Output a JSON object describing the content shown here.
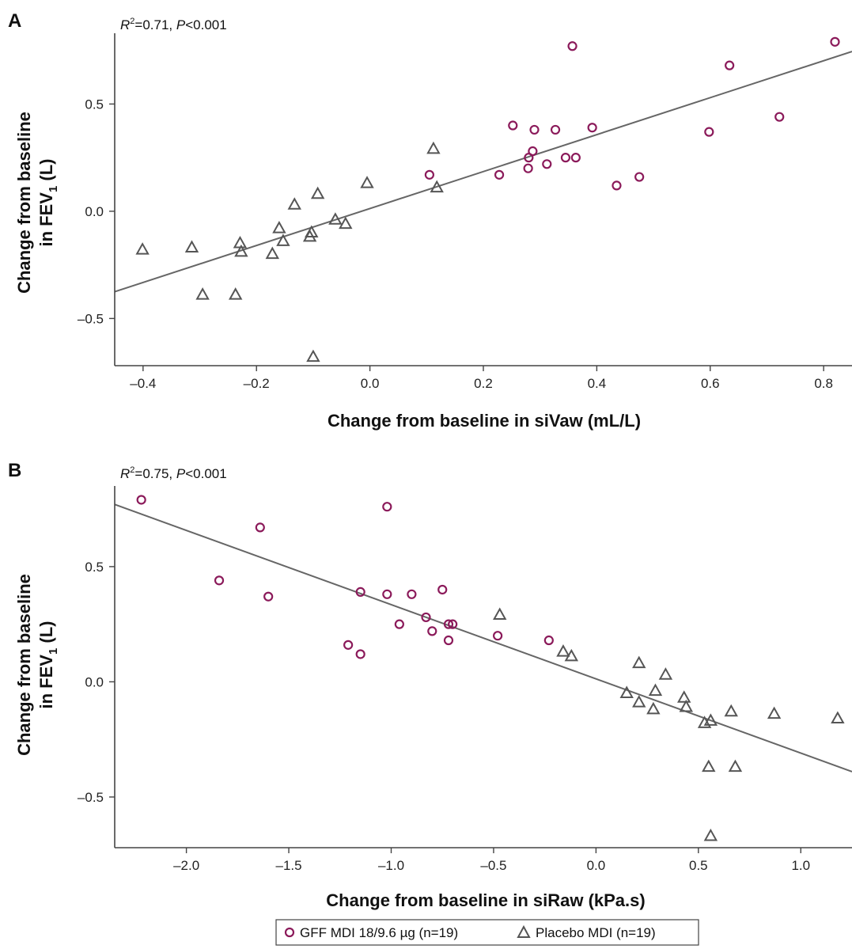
{
  "colors": {
    "gff": "#8B1A5A",
    "placebo": "#555555",
    "fit_line": "#666666",
    "axis": "#444444"
  },
  "legend": {
    "gff_label": "GFF MDI 18/9.6 µg (n=19)",
    "placebo_label": "Placebo MDI (n=19)",
    "gff_marker": "circle",
    "placebo_marker": "triangle"
  },
  "chart_data": [
    {
      "panel": "A",
      "type": "scatter",
      "stat": {
        "r2_symbol": "R",
        "r2_value": "=0.71, ",
        "p_symbol": "P",
        "p_value": "<0.001"
      },
      "xlabel": "Change from baseline in siVaw (mL/L)",
      "ylabel_line1": "Change from baseline",
      "ylabel_line2_pre": "in FEV",
      "ylabel_line2_sub": "1",
      "ylabel_line2_post": " (L)",
      "xlim": [
        -0.45,
        0.85
      ],
      "ylim": [
        -0.72,
        0.83
      ],
      "xticks": [
        -0.4,
        -0.2,
        0.0,
        0.2,
        0.4,
        0.6,
        0.8
      ],
      "xtick_labels": [
        "–0.4",
        "–0.2",
        "0.0",
        "0.2",
        "0.4",
        "0.6",
        "0.8"
      ],
      "yticks": [
        -0.5,
        0.0,
        0.5
      ],
      "ytick_labels": [
        "–0.5",
        "0.0",
        "0.5"
      ],
      "fit_line": {
        "x": [
          -0.45,
          0.85
        ],
        "y": [
          -0.375,
          0.745
        ]
      },
      "series": [
        {
          "name": "GFF MDI 18/9.6 µg (n=19)",
          "marker": "circle",
          "points": [
            [
              0.357,
              0.77
            ],
            [
              0.82,
              0.79
            ],
            [
              0.634,
              0.68
            ],
            [
              0.252,
              0.4
            ],
            [
              0.29,
              0.38
            ],
            [
              0.327,
              0.38
            ],
            [
              0.392,
              0.39
            ],
            [
              0.598,
              0.37
            ],
            [
              0.722,
              0.44
            ],
            [
              0.287,
              0.28
            ],
            [
              0.28,
              0.25
            ],
            [
              0.345,
              0.25
            ],
            [
              0.363,
              0.25
            ],
            [
              0.312,
              0.22
            ],
            [
              0.279,
              0.2
            ],
            [
              0.105,
              0.17
            ],
            [
              0.228,
              0.17
            ],
            [
              0.475,
              0.16
            ],
            [
              0.435,
              0.12
            ]
          ]
        },
        {
          "name": "Placebo MDI (n=19)",
          "marker": "triangle",
          "points": [
            [
              0.112,
              0.29
            ],
            [
              -0.005,
              0.13
            ],
            [
              0.118,
              0.11
            ],
            [
              -0.092,
              0.08
            ],
            [
              -0.133,
              0.03
            ],
            [
              -0.061,
              -0.04
            ],
            [
              -0.043,
              -0.06
            ],
            [
              -0.16,
              -0.08
            ],
            [
              -0.103,
              -0.1
            ],
            [
              -0.106,
              -0.12
            ],
            [
              -0.153,
              -0.14
            ],
            [
              -0.229,
              -0.15
            ],
            [
              -0.314,
              -0.17
            ],
            [
              -0.401,
              -0.18
            ],
            [
              -0.227,
              -0.19
            ],
            [
              -0.172,
              -0.2
            ],
            [
              -0.295,
              -0.39
            ],
            [
              -0.237,
              -0.39
            ],
            [
              -0.1,
              -0.68
            ]
          ]
        }
      ]
    },
    {
      "panel": "B",
      "type": "scatter",
      "stat": {
        "r2_symbol": "R",
        "r2_value": "=0.75, ",
        "p_symbol": "P",
        "p_value": "<0.001"
      },
      "xlabel": "Change from baseline in siRaw (kPa.s)",
      "ylabel_line1": "Change from baseline",
      "ylabel_line2_pre": "in FEV",
      "ylabel_line2_sub": "1",
      "ylabel_line2_post": " (L)",
      "xlim": [
        -2.35,
        1.25
      ],
      "ylim": [
        -0.72,
        0.85
      ],
      "xticks": [
        -2.0,
        -1.5,
        -1.0,
        -0.5,
        0.0,
        0.5,
        1.0
      ],
      "xtick_labels": [
        "–2.0",
        "–1.5",
        "–1.0",
        "–0.5",
        "0.0",
        "0.5",
        "1.0"
      ],
      "yticks": [
        -0.5,
        0.0,
        0.5
      ],
      "ytick_labels": [
        "–0.5",
        "0.0",
        "0.5"
      ],
      "fit_line": {
        "x": [
          -2.35,
          1.25
        ],
        "y": [
          0.77,
          -0.39
        ]
      },
      "series": [
        {
          "name": "GFF MDI 18/9.6 µg (n=19)",
          "marker": "circle",
          "points": [
            [
              -2.22,
              0.79
            ],
            [
              -1.64,
              0.67
            ],
            [
              -1.02,
              0.76
            ],
            [
              -1.84,
              0.44
            ],
            [
              -1.6,
              0.37
            ],
            [
              -1.15,
              0.39
            ],
            [
              -1.02,
              0.38
            ],
            [
              -0.9,
              0.38
            ],
            [
              -0.75,
              0.4
            ],
            [
              -0.83,
              0.28
            ],
            [
              -0.96,
              0.25
            ],
            [
              -0.72,
              0.25
            ],
            [
              -0.7,
              0.25
            ],
            [
              -0.8,
              0.22
            ],
            [
              -0.48,
              0.2
            ],
            [
              -0.72,
              0.18
            ],
            [
              -0.23,
              0.18
            ],
            [
              -1.21,
              0.16
            ],
            [
              -1.15,
              0.12
            ]
          ]
        },
        {
          "name": "Placebo MDI (n=19)",
          "marker": "triangle",
          "points": [
            [
              -0.47,
              0.29
            ],
            [
              -0.16,
              0.13
            ],
            [
              -0.12,
              0.11
            ],
            [
              0.21,
              0.08
            ],
            [
              0.34,
              0.03
            ],
            [
              0.29,
              -0.04
            ],
            [
              0.15,
              -0.05
            ],
            [
              0.43,
              -0.07
            ],
            [
              0.21,
              -0.09
            ],
            [
              0.44,
              -0.11
            ],
            [
              0.28,
              -0.12
            ],
            [
              0.66,
              -0.13
            ],
            [
              0.87,
              -0.14
            ],
            [
              1.18,
              -0.16
            ],
            [
              0.56,
              -0.17
            ],
            [
              0.53,
              -0.18
            ],
            [
              0.55,
              -0.37
            ],
            [
              0.68,
              -0.37
            ],
            [
              0.56,
              -0.67
            ]
          ]
        }
      ]
    }
  ]
}
